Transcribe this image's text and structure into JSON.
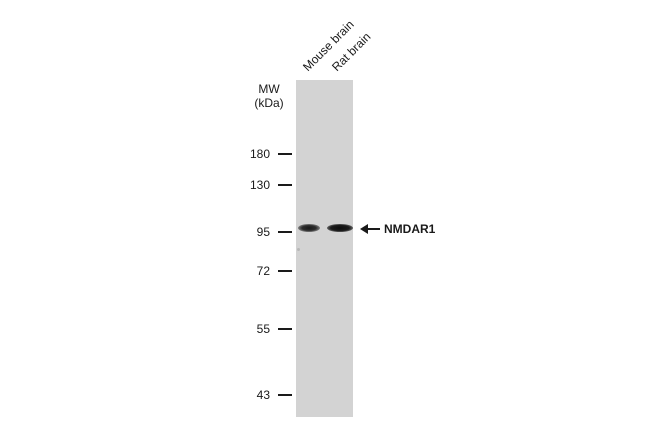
{
  "molecular_weight": {
    "title_line1": "MW",
    "title_line2": "(kDa)",
    "markers": [
      "180",
      "130",
      "95",
      "72",
      "55",
      "43"
    ]
  },
  "lanes": [
    {
      "label": "Mouse brain"
    },
    {
      "label": "Rat brain"
    }
  ],
  "target": {
    "label": "NMDAR1",
    "arrow_icon": "left-arrow-icon"
  },
  "colors": {
    "membrane": "#d3d3d3",
    "band": "#1a1a1a",
    "text": "#1a1a1a"
  }
}
